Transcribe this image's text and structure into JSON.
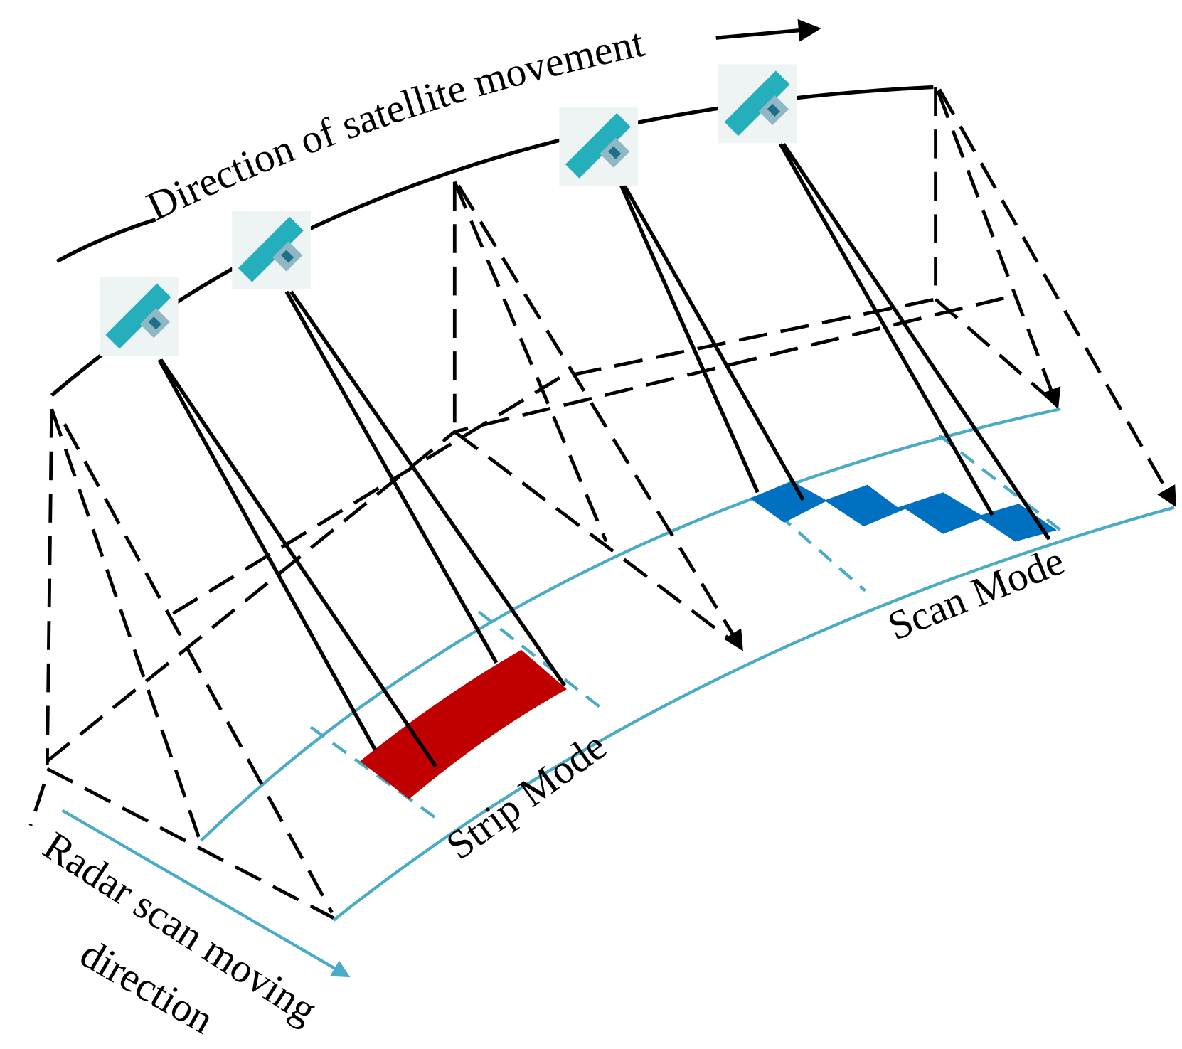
{
  "labels": {
    "satellite_direction": "Direction of satellite movement",
    "strip_mode": "Strip Mode",
    "scan_mode": "Scan Mode",
    "radar_direction": [
      "Radar scan moving",
      "direction"
    ]
  }
}
